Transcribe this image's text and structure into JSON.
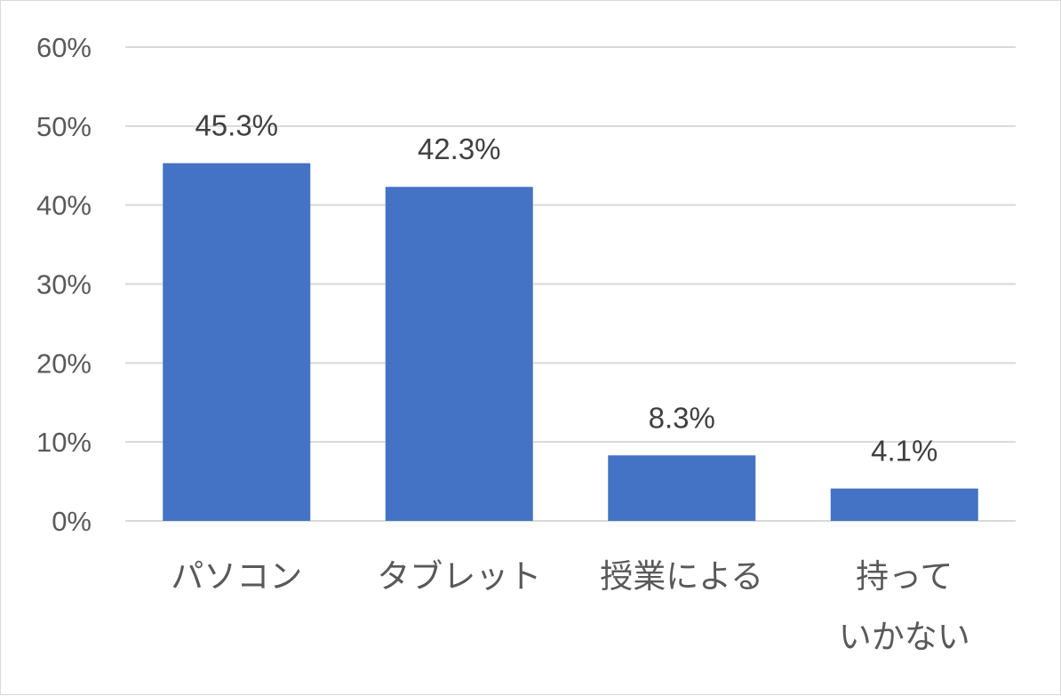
{
  "chart_data": {
    "type": "bar",
    "title": "",
    "xlabel": "",
    "ylabel": "",
    "categories": [
      [
        "パソコン"
      ],
      [
        "タブレット"
      ],
      [
        "授業による"
      ],
      [
        "持って",
        "いかない"
      ]
    ],
    "values": [
      45.3,
      42.3,
      8.3,
      4.1
    ],
    "data_labels": [
      "45.3%",
      "42.3%",
      "8.3%",
      "4.1%"
    ],
    "ylim": [
      0,
      60
    ],
    "yticks": [
      0,
      10,
      20,
      30,
      40,
      50,
      60
    ],
    "ytick_labels": [
      "0%",
      "10%",
      "20%",
      "30%",
      "40%",
      "50%",
      "60%"
    ],
    "grid": true,
    "legend": "none",
    "colors": {
      "bar": "#4472C4",
      "grid": "#d9d9d9",
      "text": "#595959"
    }
  }
}
